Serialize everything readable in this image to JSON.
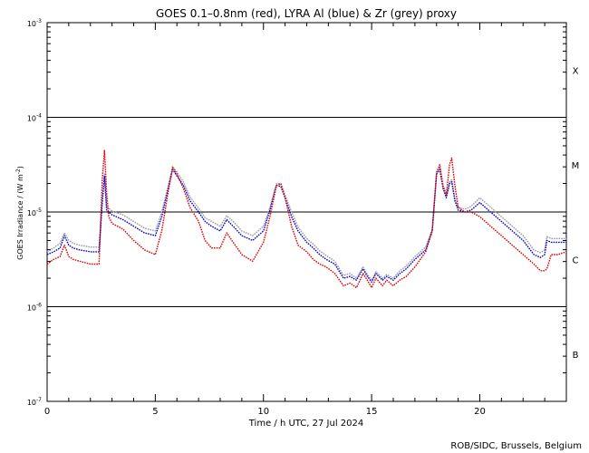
{
  "chart_data": {
    "type": "line",
    "title": "GOES 0.1–0.8nm (red), LYRA Al (blue) & Zr (grey) proxy",
    "xlabel": "Time / h UTC, 27 Jul 2024",
    "ylabel_main": "GOES Irradiance / (W m",
    "ylabel_sup": "-2",
    "ylabel_close": ")",
    "xlim": [
      0,
      24
    ],
    "ylim_exp": [
      -7,
      -3
    ],
    "y_scale": "log",
    "x_ticks": [
      {
        "value": 0,
        "label": "0"
      },
      {
        "value": 5,
        "label": "5"
      },
      {
        "value": 10,
        "label": "10"
      },
      {
        "value": 15,
        "label": "15"
      },
      {
        "value": 20,
        "label": "20"
      }
    ],
    "y_ticks": [
      {
        "exp": -3,
        "base": "10",
        "sup": "-3"
      },
      {
        "exp": -4,
        "base": "10",
        "sup": "-4"
      },
      {
        "exp": -5,
        "base": "10",
        "sup": "-5"
      },
      {
        "exp": -6,
        "base": "10",
        "sup": "-6"
      },
      {
        "exp": -7,
        "base": "10",
        "sup": "-7"
      }
    ],
    "class_labels": [
      {
        "label": "X",
        "exp": -3.5
      },
      {
        "label": "M",
        "exp": -4.5
      },
      {
        "label": "C",
        "exp": -5.5
      },
      {
        "label": "B",
        "exp": -6.5
      }
    ],
    "threshold_lines_exp": [
      -4,
      -5,
      -6
    ],
    "series": [
      {
        "name": "GOES 0.1-0.8nm",
        "color": "#dd0000",
        "x": [
          0,
          0.3,
          0.6,
          0.8,
          1.0,
          1.2,
          1.5,
          2.0,
          2.4,
          2.55,
          2.65,
          2.75,
          2.85,
          3.0,
          3.5,
          4.0,
          4.5,
          5.0,
          5.3,
          5.6,
          5.8,
          6.0,
          6.3,
          6.6,
          7.0,
          7.3,
          7.6,
          8.0,
          8.3,
          8.6,
          9.0,
          9.5,
          10.0,
          10.3,
          10.6,
          10.8,
          11.0,
          11.3,
          11.6,
          12.0,
          12.3,
          12.6,
          12.9,
          13.3,
          13.7,
          14.0,
          14.3,
          14.6,
          14.8,
          15.0,
          15.2,
          15.5,
          15.7,
          16.0,
          16.3,
          16.6,
          17.0,
          17.5,
          17.8,
          18.0,
          18.15,
          18.3,
          18.45,
          18.6,
          18.7,
          18.85,
          19.0,
          19.3,
          19.6,
          20.0,
          20.5,
          21.0,
          21.5,
          22.0,
          22.5,
          22.8,
          23.0,
          23.1,
          23.3,
          23.6,
          24.0
        ],
        "y_exp": [
          -5.55,
          -5.5,
          -5.47,
          -5.35,
          -5.47,
          -5.5,
          -5.52,
          -5.55,
          -5.55,
          -4.65,
          -4.35,
          -4.8,
          -5.05,
          -5.12,
          -5.18,
          -5.3,
          -5.4,
          -5.45,
          -5.2,
          -4.78,
          -4.53,
          -4.6,
          -4.75,
          -4.95,
          -5.1,
          -5.3,
          -5.38,
          -5.38,
          -5.22,
          -5.32,
          -5.45,
          -5.52,
          -5.32,
          -5.05,
          -4.72,
          -4.7,
          -4.85,
          -5.15,
          -5.35,
          -5.42,
          -5.5,
          -5.55,
          -5.58,
          -5.65,
          -5.78,
          -5.75,
          -5.8,
          -5.65,
          -5.72,
          -5.8,
          -5.7,
          -5.78,
          -5.72,
          -5.78,
          -5.72,
          -5.68,
          -5.58,
          -5.42,
          -5.2,
          -4.58,
          -4.5,
          -4.72,
          -4.82,
          -4.5,
          -4.43,
          -4.72,
          -4.95,
          -5.0,
          -5.0,
          -5.05,
          -5.15,
          -5.25,
          -5.35,
          -5.45,
          -5.55,
          -5.62,
          -5.62,
          -5.6,
          -5.45,
          -5.45,
          -5.42
        ]
      },
      {
        "name": "LYRA Al proxy",
        "color": "#0000cc",
        "x": [
          0,
          0.3,
          0.6,
          0.8,
          1.0,
          1.2,
          1.5,
          2.0,
          2.4,
          2.55,
          2.65,
          2.75,
          2.85,
          3.0,
          3.5,
          4.0,
          4.5,
          5.0,
          5.3,
          5.6,
          5.8,
          6.0,
          6.3,
          6.6,
          7.0,
          7.3,
          7.6,
          8.0,
          8.3,
          8.6,
          9.0,
          9.5,
          10.0,
          10.3,
          10.6,
          10.8,
          11.0,
          11.3,
          11.6,
          12.0,
          12.3,
          12.6,
          12.9,
          13.3,
          13.7,
          14.0,
          14.3,
          14.6,
          14.8,
          15.0,
          15.2,
          15.5,
          15.7,
          16.0,
          16.3,
          16.6,
          17.0,
          17.5,
          17.8,
          18.0,
          18.15,
          18.3,
          18.45,
          18.6,
          18.7,
          18.85,
          19.0,
          19.3,
          19.6,
          20.0,
          20.5,
          21.0,
          21.5,
          22.0,
          22.5,
          22.8,
          23.0,
          23.1,
          23.3,
          23.6,
          24.0
        ],
        "y_exp": [
          -5.45,
          -5.42,
          -5.38,
          -5.25,
          -5.35,
          -5.38,
          -5.4,
          -5.42,
          -5.42,
          -4.9,
          -4.62,
          -4.98,
          -5.0,
          -5.03,
          -5.08,
          -5.15,
          -5.22,
          -5.25,
          -5.05,
          -4.75,
          -4.55,
          -4.62,
          -4.72,
          -4.88,
          -5.0,
          -5.1,
          -5.15,
          -5.2,
          -5.08,
          -5.15,
          -5.25,
          -5.3,
          -5.2,
          -4.98,
          -4.72,
          -4.73,
          -4.85,
          -5.05,
          -5.2,
          -5.32,
          -5.38,
          -5.45,
          -5.5,
          -5.55,
          -5.7,
          -5.68,
          -5.72,
          -5.6,
          -5.68,
          -5.74,
          -5.65,
          -5.72,
          -5.68,
          -5.72,
          -5.65,
          -5.6,
          -5.5,
          -5.4,
          -5.2,
          -4.6,
          -4.55,
          -4.75,
          -4.85,
          -4.7,
          -4.68,
          -4.88,
          -4.98,
          -5.0,
          -4.98,
          -4.9,
          -5.0,
          -5.1,
          -5.2,
          -5.3,
          -5.45,
          -5.48,
          -5.45,
          -5.3,
          -5.32,
          -5.32,
          -5.32
        ]
      },
      {
        "name": "LYRA Zr proxy",
        "color": "#999999",
        "x": [
          0,
          0.3,
          0.6,
          0.8,
          1.0,
          1.2,
          1.5,
          2.0,
          2.4,
          2.55,
          2.65,
          2.75,
          2.85,
          3.0,
          3.5,
          4.0,
          4.5,
          5.0,
          5.3,
          5.6,
          5.8,
          6.0,
          6.3,
          6.6,
          7.0,
          7.3,
          7.6,
          8.0,
          8.3,
          8.6,
          9.0,
          9.5,
          10.0,
          10.3,
          10.6,
          10.8,
          11.0,
          11.3,
          11.6,
          12.0,
          12.3,
          12.6,
          12.9,
          13.3,
          13.7,
          14.0,
          14.3,
          14.6,
          14.8,
          15.0,
          15.2,
          15.5,
          15.7,
          16.0,
          16.3,
          16.6,
          17.0,
          17.5,
          17.8,
          18.0,
          18.15,
          18.3,
          18.45,
          18.6,
          18.7,
          18.85,
          19.0,
          19.3,
          19.6,
          20.0,
          20.5,
          21.0,
          21.5,
          22.0,
          22.5,
          22.8,
          23.0,
          23.1,
          23.3,
          23.6,
          24.0
        ],
        "y_exp": [
          -5.42,
          -5.38,
          -5.33,
          -5.22,
          -5.3,
          -5.33,
          -5.35,
          -5.37,
          -5.37,
          -4.88,
          -4.6,
          -4.95,
          -4.96,
          -4.99,
          -5.03,
          -5.1,
          -5.17,
          -5.2,
          -5.0,
          -4.72,
          -4.52,
          -4.58,
          -4.68,
          -4.84,
          -4.96,
          -5.06,
          -5.1,
          -5.15,
          -5.04,
          -5.1,
          -5.2,
          -5.25,
          -5.15,
          -4.95,
          -4.7,
          -4.7,
          -4.82,
          -5.0,
          -5.16,
          -5.28,
          -5.34,
          -5.41,
          -5.46,
          -5.52,
          -5.67,
          -5.65,
          -5.7,
          -5.58,
          -5.66,
          -5.72,
          -5.63,
          -5.7,
          -5.66,
          -5.7,
          -5.62,
          -5.57,
          -5.47,
          -5.37,
          -5.18,
          -4.58,
          -4.53,
          -4.73,
          -4.83,
          -4.68,
          -4.66,
          -4.86,
          -4.95,
          -4.97,
          -4.94,
          -4.85,
          -4.95,
          -5.05,
          -5.15,
          -5.25,
          -5.4,
          -5.43,
          -5.4,
          -5.26,
          -5.28,
          -5.28,
          -5.28
        ]
      }
    ]
  },
  "credit": "ROB/SIDC, Brussels, Belgium"
}
